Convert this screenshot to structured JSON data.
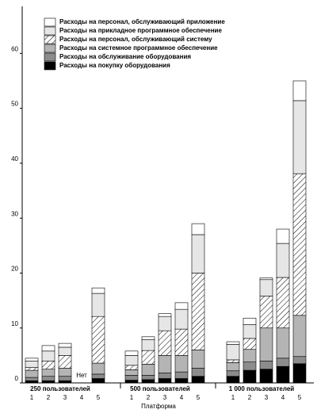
{
  "chart_data": {
    "type": "stacked-bar",
    "groups": [
      "250 пользователей",
      "500 пользователей",
      "1 000 пользователей"
    ],
    "categories": [
      "1",
      "2",
      "3",
      "4",
      "5",
      "1",
      "2",
      "3",
      "4",
      "5",
      "1",
      "2",
      "3",
      "4",
      "5"
    ],
    "x_label": "Платформа",
    "annotation": "Нет",
    "ylim": [
      0,
      69
    ],
    "yticks": [
      0,
      10,
      20,
      30,
      40,
      50,
      60
    ],
    "series": [
      {
        "name": "Расходы на покупку оборудования",
        "color": "#000000",
        "values": [
          0.4,
          0.4,
          0.4,
          null,
          0.8,
          0.5,
          0.6,
          0.8,
          0.8,
          1.2,
          1.2,
          2.3,
          2.5,
          3.0,
          3.5
        ]
      },
      {
        "name": "Расходы на обслуживание оборудования",
        "color": "#8c8c8c",
        "values": [
          0.6,
          0.8,
          0.8,
          null,
          0.8,
          0.9,
          0.8,
          1.0,
          1.2,
          1.5,
          1.0,
          1.5,
          1.5,
          1.5,
          1.3
        ]
      },
      {
        "name": "Расходы на системное программное обеспечение",
        "color": "#b4b4b4",
        "values": [
          1.3,
          1.3,
          1.5,
          null,
          2.0,
          1.0,
          2.0,
          3.2,
          3.0,
          3.3,
          1.5,
          2.3,
          6.0,
          5.5,
          7.5
        ]
      },
      {
        "name": "Расходы на персонал, обслуживающий систему",
        "color": "#ffffff",
        "hatch": true,
        "values": [
          0.5,
          1.5,
          2.3,
          null,
          8.5,
          0.8,
          2.5,
          4.5,
          4.8,
          14.0,
          0.5,
          2.0,
          5.8,
          9.2,
          25.8
        ]
      },
      {
        "name": "Расходы на прикладное программное обеспечение",
        "color": "#e6e6e6",
        "values": [
          1.2,
          1.8,
          1.5,
          null,
          4.2,
          1.8,
          2.0,
          2.6,
          3.6,
          7.0,
          2.8,
          2.5,
          3.0,
          6.2,
          13.3
        ]
      },
      {
        "name": "Расходы на персонал, обслуживающий приложение",
        "color": "#ffffff",
        "values": [
          0.5,
          1.0,
          0.7,
          null,
          1.0,
          0.8,
          0.5,
          0.5,
          1.2,
          2.0,
          0.5,
          1.2,
          0.3,
          2.6,
          3.6
        ]
      }
    ]
  }
}
